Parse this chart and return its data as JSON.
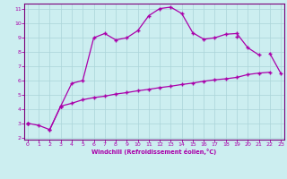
{
  "xlabel": "Windchill (Refroidissement éolien,°C)",
  "background_color": "#cceef0",
  "grid_color": "#aad4d8",
  "line_color": "#aa00aa",
  "x": [
    0,
    1,
    2,
    3,
    4,
    5,
    6,
    7,
    8,
    9,
    10,
    11,
    12,
    13,
    14,
    15,
    16,
    17,
    18,
    19,
    20,
    21,
    22,
    23
  ],
  "line1": [
    3.0,
    2.85,
    2.55,
    4.2,
    5.8,
    6.0,
    9.0,
    9.3,
    8.85,
    9.0,
    9.5,
    10.55,
    11.05,
    11.15,
    10.7,
    9.35,
    8.9,
    9.0,
    9.25,
    9.3,
    8.3,
    7.8,
    null,
    null
  ],
  "line2": [
    3.0,
    null,
    null,
    4.2,
    null,
    null,
    null,
    null,
    null,
    null,
    null,
    null,
    null,
    null,
    null,
    null,
    null,
    null,
    null,
    9.1,
    null,
    null,
    7.9,
    6.5
  ],
  "line3": [
    3.0,
    null,
    2.55,
    4.2,
    4.4,
    4.65,
    4.8,
    4.9,
    5.05,
    5.15,
    5.28,
    5.38,
    5.5,
    5.6,
    5.72,
    5.82,
    5.95,
    6.05,
    6.12,
    6.22,
    6.42,
    6.52,
    6.58,
    null
  ],
  "ylim_min": 2,
  "ylim_max": 11,
  "xlim_min": 0,
  "xlim_max": 23,
  "yticks": [
    2,
    3,
    4,
    5,
    6,
    7,
    8,
    9,
    10,
    11
  ],
  "xticks": [
    0,
    1,
    2,
    3,
    4,
    5,
    6,
    7,
    8,
    9,
    10,
    11,
    12,
    13,
    14,
    15,
    16,
    17,
    18,
    19,
    20,
    21,
    22,
    23
  ]
}
